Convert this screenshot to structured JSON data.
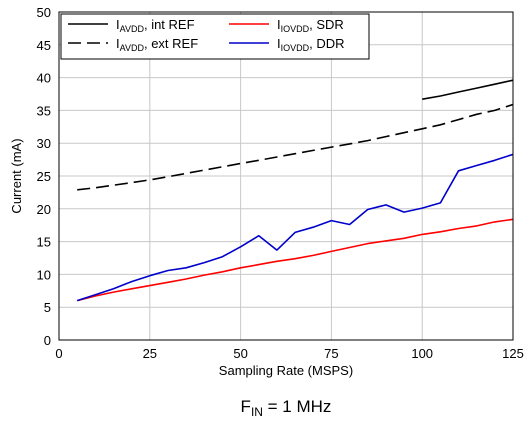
{
  "chart_data": {
    "type": "line",
    "xlabel": "Sampling Rate (MSPS)",
    "ylabel": "Current (mA)",
    "caption": {
      "main": "F",
      "sub": "IN",
      "rest": " = 1 MHz"
    },
    "xlim": [
      0,
      125
    ],
    "ylim": [
      0,
      50
    ],
    "xticks": [
      0,
      25,
      50,
      75,
      100,
      125
    ],
    "yticks": [
      0,
      5,
      10,
      15,
      20,
      25,
      30,
      35,
      40,
      45,
      50
    ],
    "grid": true,
    "legend_position": "top-left",
    "series": [
      {
        "name": "IAVDD, int REF",
        "legend": {
          "main": "I",
          "sub": "AVDD",
          "rest": ", int REF"
        },
        "color": "#000000",
        "dash": "solid",
        "x": [
          100,
          105,
          110,
          115,
          120,
          125
        ],
        "y": [
          36.7,
          37.2,
          37.8,
          38.4,
          39.0,
          39.6
        ]
      },
      {
        "name": "IAVDD, ext REF",
        "legend": {
          "main": "I",
          "sub": "AVDD",
          "rest": ", ext REF"
        },
        "color": "#000000",
        "dash": "dashed",
        "x": [
          5,
          10,
          15,
          20,
          25,
          30,
          35,
          40,
          45,
          50,
          55,
          60,
          65,
          70,
          75,
          80,
          85,
          90,
          95,
          100,
          105,
          110,
          115,
          120,
          125
        ],
        "y": [
          22.9,
          23.2,
          23.6,
          24.0,
          24.4,
          24.9,
          25.4,
          25.9,
          26.4,
          26.9,
          27.4,
          27.9,
          28.4,
          28.9,
          29.4,
          29.9,
          30.4,
          31.0,
          31.6,
          32.2,
          32.8,
          33.6,
          34.4,
          35.0,
          35.9
        ]
      },
      {
        "name": "IIOVDD, SDR",
        "legend": {
          "main": "I",
          "sub": "IOVDD",
          "rest": ", SDR"
        },
        "color": "#ff0000",
        "dash": "solid",
        "x": [
          5,
          10,
          15,
          20,
          25,
          30,
          35,
          40,
          45,
          50,
          55,
          60,
          65,
          70,
          75,
          80,
          85,
          90,
          95,
          100,
          105,
          110,
          115,
          120,
          125
        ],
        "y": [
          6.0,
          6.7,
          7.3,
          7.8,
          8.3,
          8.8,
          9.3,
          9.9,
          10.4,
          11.0,
          11.5,
          12.0,
          12.4,
          12.9,
          13.5,
          14.1,
          14.7,
          15.1,
          15.5,
          16.1,
          16.5,
          17.0,
          17.4,
          18.0,
          18.4
        ]
      },
      {
        "name": "IIOVDD, DDR",
        "legend": {
          "main": "I",
          "sub": "IOVDD",
          "rest": ", DDR"
        },
        "color": "#0000cc",
        "dash": "solid",
        "x": [
          5,
          10,
          15,
          20,
          25,
          30,
          35,
          40,
          45,
          50,
          55,
          60,
          65,
          70,
          75,
          80,
          85,
          90,
          95,
          100,
          105,
          110,
          115,
          120,
          125
        ],
        "y": [
          6.0,
          6.9,
          7.8,
          8.9,
          9.8,
          10.6,
          11.0,
          11.8,
          12.7,
          14.2,
          15.9,
          13.7,
          16.4,
          17.2,
          18.2,
          17.6,
          19.9,
          20.6,
          19.5,
          20.1,
          20.9,
          25.8,
          26.6,
          27.4,
          28.3
        ]
      }
    ]
  }
}
